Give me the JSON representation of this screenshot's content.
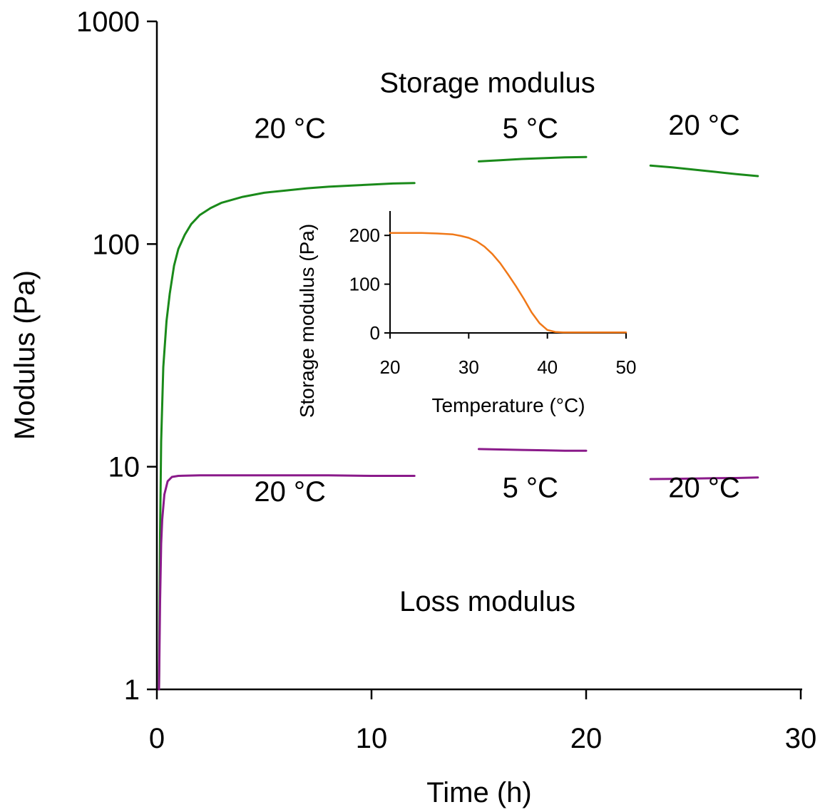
{
  "chart_data": [
    {
      "type": "line",
      "xlabel": "Time (h)",
      "ylabel": "Modulus (Pa)",
      "xlim": [
        0,
        30
      ],
      "ylim": [
        1,
        1000
      ],
      "yscale": "log",
      "xticks": [
        "0",
        "10",
        "20",
        "30"
      ],
      "yticks": [
        "1",
        "10",
        "100",
        "1000"
      ],
      "annotations": [
        {
          "text": "Storage modulus",
          "x": 15.4,
          "y": 480
        },
        {
          "text": "Loss modulus",
          "x": 15.4,
          "y": 2.25
        },
        {
          "text": "20 °C",
          "x": 6.2,
          "y": 300
        },
        {
          "text": "5 °C",
          "x": 17.4,
          "y": 300
        },
        {
          "text": "20 °C",
          "x": 25.5,
          "y": 310
        },
        {
          "text": "20 °C",
          "x": 6.2,
          "y": 7.0
        },
        {
          "text": "5 °C",
          "x": 17.4,
          "y": 7.3
        },
        {
          "text": "20 °C",
          "x": 25.5,
          "y": 7.3
        }
      ],
      "series": [
        {
          "name": "Storage modulus",
          "color": "#1a8a1a",
          "segments": [
            [
              [
                0.1,
                1.0
              ],
              [
                0.15,
                5.0
              ],
              [
                0.2,
                13.0
              ],
              [
                0.3,
                28.0
              ],
              [
                0.45,
                45.0
              ],
              [
                0.6,
                60.0
              ],
              [
                0.8,
                80.0
              ],
              [
                1.0,
                95.0
              ],
              [
                1.3,
                110.0
              ],
              [
                1.6,
                123.0
              ],
              [
                2.0,
                135.0
              ],
              [
                2.5,
                145.0
              ],
              [
                3.0,
                153.0
              ],
              [
                4.0,
                163.0
              ],
              [
                5.0,
                170.0
              ],
              [
                6.0,
                174.0
              ],
              [
                7.0,
                178.0
              ],
              [
                8.0,
                181.0
              ],
              [
                9.0,
                183.0
              ],
              [
                10.0,
                185.0
              ],
              [
                11.0,
                187.0
              ],
              [
                12.0,
                188.0
              ]
            ],
            [
              [
                15.0,
                235.0
              ],
              [
                16.0,
                238.0
              ],
              [
                17.0,
                241.0
              ],
              [
                18.0,
                243.0
              ],
              [
                19.0,
                245.0
              ],
              [
                20.0,
                246.0
              ]
            ],
            [
              [
                23.0,
                225.0
              ],
              [
                24.0,
                221.0
              ],
              [
                25.0,
                216.0
              ],
              [
                26.0,
                211.0
              ],
              [
                27.0,
                206.0
              ],
              [
                28.0,
                202.0
              ]
            ]
          ]
        },
        {
          "name": "Loss modulus",
          "color": "#8a1a8a",
          "segments": [
            [
              [
                0.1,
                1.0
              ],
              [
                0.15,
                2.5
              ],
              [
                0.2,
                4.5
              ],
              [
                0.25,
                5.8
              ],
              [
                0.35,
                7.5
              ],
              [
                0.5,
                8.6
              ],
              [
                0.7,
                9.0
              ],
              [
                1.0,
                9.1
              ],
              [
                2.0,
                9.15
              ],
              [
                4.0,
                9.15
              ],
              [
                6.0,
                9.15
              ],
              [
                8.0,
                9.15
              ],
              [
                10.0,
                9.1
              ],
              [
                12.0,
                9.1
              ]
            ],
            [
              [
                15.0,
                12.0
              ],
              [
                16.0,
                11.95
              ],
              [
                17.0,
                11.9
              ],
              [
                18.0,
                11.85
              ],
              [
                19.0,
                11.8
              ],
              [
                20.0,
                11.8
              ]
            ],
            [
              [
                23.0,
                8.8
              ],
              [
                24.0,
                8.82
              ],
              [
                25.0,
                8.85
              ],
              [
                26.0,
                8.88
              ],
              [
                27.0,
                8.9
              ],
              [
                28.0,
                8.95
              ]
            ]
          ]
        }
      ]
    },
    {
      "type": "line",
      "xlabel": "Temperature (°C)",
      "ylabel": "Storage modulus (Pa)",
      "xlim": [
        20,
        50
      ],
      "ylim": [
        0,
        250
      ],
      "xticks": [
        "20",
        "30",
        "40",
        "50"
      ],
      "yticks": [
        "0",
        "100",
        "200"
      ],
      "series": [
        {
          "name": "Storage modulus",
          "color": "#f07818",
          "x": [
            20,
            22,
            24,
            26,
            28,
            29,
            30,
            31,
            32,
            33,
            34,
            35,
            36,
            37,
            38,
            39,
            40,
            41,
            42,
            45,
            48,
            50
          ],
          "y": [
            205,
            205,
            205,
            204,
            202,
            199,
            195,
            188,
            177,
            162,
            143,
            120,
            96,
            70,
            42,
            20,
            6,
            2,
            1,
            1,
            1,
            1
          ]
        }
      ]
    }
  ]
}
